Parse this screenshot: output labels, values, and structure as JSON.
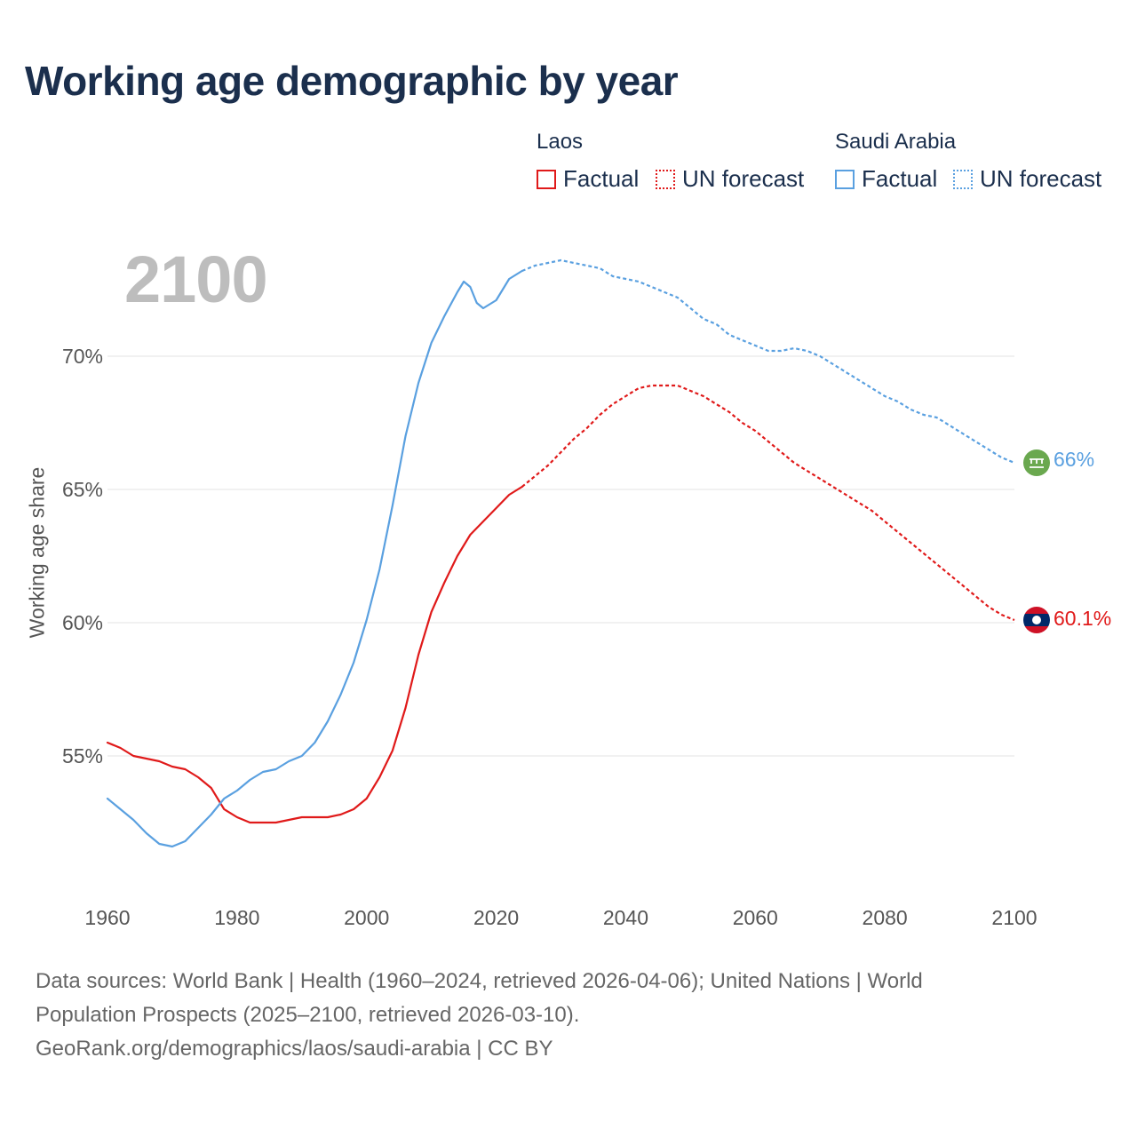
{
  "title": "Working age demographic by year",
  "legend": {
    "groups": [
      {
        "name": "Laos",
        "factual": "Factual",
        "forecast": "UN forecast",
        "color": "#e01a1a"
      },
      {
        "name": "Saudi Arabia",
        "factual": "Factual",
        "forecast": "UN forecast",
        "color": "#5aa0e0"
      }
    ]
  },
  "year_overlay": "2100",
  "end_labels": {
    "saudi": "66%",
    "laos": "60.1%"
  },
  "flag_icons": {
    "saudi": "saudi-arabia-flag-icon",
    "laos": "laos-flag-icon"
  },
  "source": {
    "line1": "Data sources: World Bank | Health (1960–2024, retrieved 2026-04-06); United Nations | World",
    "line2": "Population Prospects (2025–2100, retrieved 2026-03-10).",
    "line3": "GeoRank.org/demographics/laos/saudi-arabia | CC BY"
  },
  "chart_data": {
    "type": "line",
    "title": "Working age demographic by year",
    "xlabel": "",
    "ylabel": "Working age share",
    "xlim": [
      1960,
      2100
    ],
    "ylim": [
      50,
      75
    ],
    "x_ticks": [
      1960,
      1980,
      2000,
      2020,
      2040,
      2060,
      2080,
      2100
    ],
    "y_ticks": [
      55,
      60,
      65,
      70
    ],
    "y_tick_labels": [
      "55%",
      "60%",
      "65%",
      "70%"
    ],
    "grid": true,
    "forecast_start": 2024,
    "series": [
      {
        "name": "Laos",
        "color": "#e01a1a",
        "points": [
          [
            1960,
            55.5
          ],
          [
            1962,
            55.3
          ],
          [
            1964,
            55.0
          ],
          [
            1966,
            54.9
          ],
          [
            1968,
            54.8
          ],
          [
            1970,
            54.6
          ],
          [
            1972,
            54.5
          ],
          [
            1974,
            54.2
          ],
          [
            1976,
            53.8
          ],
          [
            1978,
            53.0
          ],
          [
            1980,
            52.7
          ],
          [
            1982,
            52.5
          ],
          [
            1984,
            52.5
          ],
          [
            1986,
            52.5
          ],
          [
            1988,
            52.6
          ],
          [
            1990,
            52.7
          ],
          [
            1992,
            52.7
          ],
          [
            1994,
            52.7
          ],
          [
            1996,
            52.8
          ],
          [
            1998,
            53.0
          ],
          [
            2000,
            53.4
          ],
          [
            2002,
            54.2
          ],
          [
            2004,
            55.2
          ],
          [
            2006,
            56.8
          ],
          [
            2008,
            58.8
          ],
          [
            2010,
            60.4
          ],
          [
            2012,
            61.5
          ],
          [
            2014,
            62.5
          ],
          [
            2016,
            63.3
          ],
          [
            2018,
            63.8
          ],
          [
            2020,
            64.3
          ],
          [
            2022,
            64.8
          ],
          [
            2024,
            65.1
          ],
          [
            2026,
            65.5
          ],
          [
            2028,
            65.9
          ],
          [
            2030,
            66.4
          ],
          [
            2032,
            66.9
          ],
          [
            2034,
            67.3
          ],
          [
            2036,
            67.8
          ],
          [
            2038,
            68.2
          ],
          [
            2040,
            68.5
          ],
          [
            2042,
            68.8
          ],
          [
            2044,
            68.9
          ],
          [
            2046,
            68.9
          ],
          [
            2048,
            68.9
          ],
          [
            2050,
            68.7
          ],
          [
            2052,
            68.5
          ],
          [
            2054,
            68.2
          ],
          [
            2056,
            67.9
          ],
          [
            2058,
            67.5
          ],
          [
            2060,
            67.2
          ],
          [
            2062,
            66.8
          ],
          [
            2064,
            66.4
          ],
          [
            2066,
            66.0
          ],
          [
            2068,
            65.7
          ],
          [
            2070,
            65.4
          ],
          [
            2072,
            65.1
          ],
          [
            2074,
            64.8
          ],
          [
            2076,
            64.5
          ],
          [
            2078,
            64.2
          ],
          [
            2080,
            63.8
          ],
          [
            2082,
            63.4
          ],
          [
            2084,
            63.0
          ],
          [
            2086,
            62.6
          ],
          [
            2088,
            62.2
          ],
          [
            2090,
            61.8
          ],
          [
            2092,
            61.4
          ],
          [
            2094,
            61.0
          ],
          [
            2096,
            60.6
          ],
          [
            2098,
            60.3
          ],
          [
            2100,
            60.1
          ]
        ]
      },
      {
        "name": "Saudi Arabia",
        "color": "#5aa0e0",
        "points": [
          [
            1960,
            53.4
          ],
          [
            1962,
            53.0
          ],
          [
            1964,
            52.6
          ],
          [
            1966,
            52.1
          ],
          [
            1968,
            51.7
          ],
          [
            1970,
            51.6
          ],
          [
            1972,
            51.8
          ],
          [
            1974,
            52.3
          ],
          [
            1976,
            52.8
          ],
          [
            1978,
            53.4
          ],
          [
            1980,
            53.7
          ],
          [
            1982,
            54.1
          ],
          [
            1984,
            54.4
          ],
          [
            1986,
            54.5
          ],
          [
            1988,
            54.8
          ],
          [
            1990,
            55.0
          ],
          [
            1992,
            55.5
          ],
          [
            1994,
            56.3
          ],
          [
            1996,
            57.3
          ],
          [
            1998,
            58.5
          ],
          [
            2000,
            60.1
          ],
          [
            2002,
            62.0
          ],
          [
            2004,
            64.4
          ],
          [
            2006,
            67.0
          ],
          [
            2008,
            69.0
          ],
          [
            2010,
            70.5
          ],
          [
            2012,
            71.5
          ],
          [
            2014,
            72.4
          ],
          [
            2015,
            72.8
          ],
          [
            2016,
            72.6
          ],
          [
            2017,
            72.0
          ],
          [
            2018,
            71.8
          ],
          [
            2020,
            72.1
          ],
          [
            2022,
            72.9
          ],
          [
            2024,
            73.2
          ],
          [
            2026,
            73.4
          ],
          [
            2028,
            73.5
          ],
          [
            2030,
            73.6
          ],
          [
            2032,
            73.5
          ],
          [
            2034,
            73.4
          ],
          [
            2036,
            73.3
          ],
          [
            2038,
            73.0
          ],
          [
            2040,
            72.9
          ],
          [
            2042,
            72.8
          ],
          [
            2044,
            72.6
          ],
          [
            2046,
            72.4
          ],
          [
            2048,
            72.2
          ],
          [
            2050,
            71.8
          ],
          [
            2052,
            71.4
          ],
          [
            2054,
            71.2
          ],
          [
            2056,
            70.8
          ],
          [
            2058,
            70.6
          ],
          [
            2060,
            70.4
          ],
          [
            2062,
            70.2
          ],
          [
            2064,
            70.2
          ],
          [
            2066,
            70.3
          ],
          [
            2068,
            70.2
          ],
          [
            2070,
            70.0
          ],
          [
            2072,
            69.7
          ],
          [
            2074,
            69.4
          ],
          [
            2076,
            69.1
          ],
          [
            2078,
            68.8
          ],
          [
            2080,
            68.5
          ],
          [
            2082,
            68.3
          ],
          [
            2084,
            68.0
          ],
          [
            2086,
            67.8
          ],
          [
            2088,
            67.7
          ],
          [
            2090,
            67.4
          ],
          [
            2092,
            67.1
          ],
          [
            2094,
            66.8
          ],
          [
            2096,
            66.5
          ],
          [
            2098,
            66.2
          ],
          [
            2100,
            66.0
          ]
        ]
      }
    ]
  }
}
